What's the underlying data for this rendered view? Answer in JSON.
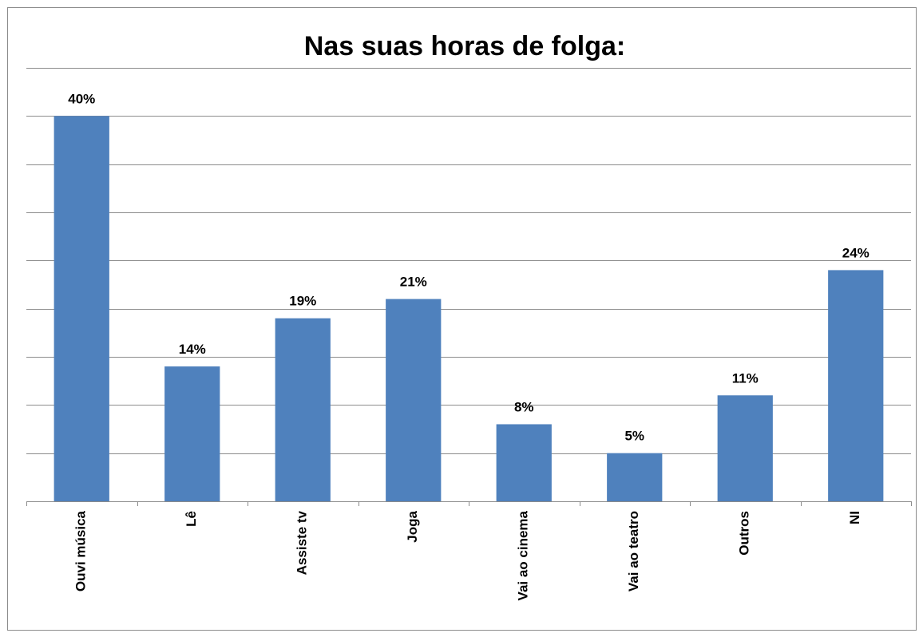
{
  "chart_data": {
    "type": "bar",
    "title": "Nas suas horas de folga:",
    "categories": [
      "Ouvi música",
      "Lê",
      "Assiste tv",
      "Joga",
      "Vai ao cinema",
      "Vai ao teatro",
      "Outros",
      "NI"
    ],
    "values": [
      40,
      14,
      19,
      21,
      8,
      5,
      11,
      24
    ],
    "value_labels": [
      "40%",
      "14%",
      "19%",
      "21%",
      "8%",
      "5%",
      "11%",
      "24%"
    ],
    "color": "#4f81bd",
    "ylim": [
      0,
      45
    ],
    "yticks": [
      0,
      5,
      10,
      15,
      20,
      25,
      30,
      35,
      40,
      45
    ],
    "grid": true
  }
}
